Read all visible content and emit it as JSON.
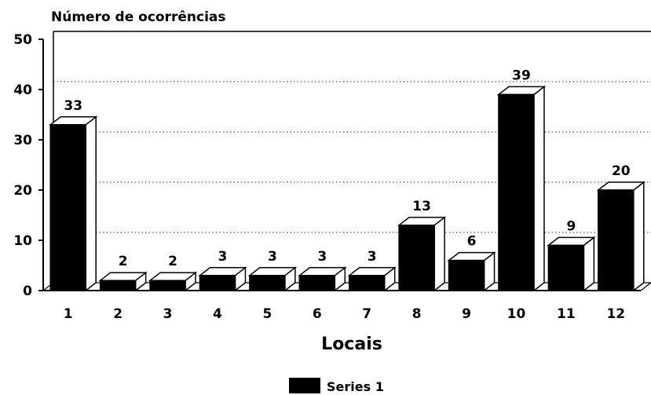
{
  "chart_data": {
    "type": "bar",
    "title": "Número de ocorrências",
    "xlabel": "Locais",
    "ylabel": "",
    "categories": [
      "1",
      "2",
      "3",
      "4",
      "5",
      "6",
      "7",
      "8",
      "9",
      "10",
      "11",
      "12"
    ],
    "series": [
      {
        "name": "Series 1",
        "values": [
          33,
          2,
          2,
          3,
          3,
          3,
          3,
          13,
          6,
          39,
          9,
          20
        ]
      }
    ],
    "ylim": [
      0,
      50
    ],
    "yticks": [
      "0",
      "10",
      "20",
      "30",
      "40",
      "50"
    ],
    "grid": "horizontal dotted",
    "legend_position": "bottom-center",
    "three_d": true,
    "colors": {
      "bar_front": "#000000",
      "bar_top": "#ffffff",
      "bar_side": "#ffffff",
      "outline": "#000000",
      "grid": "#555555",
      "background": "#ffffff"
    }
  }
}
